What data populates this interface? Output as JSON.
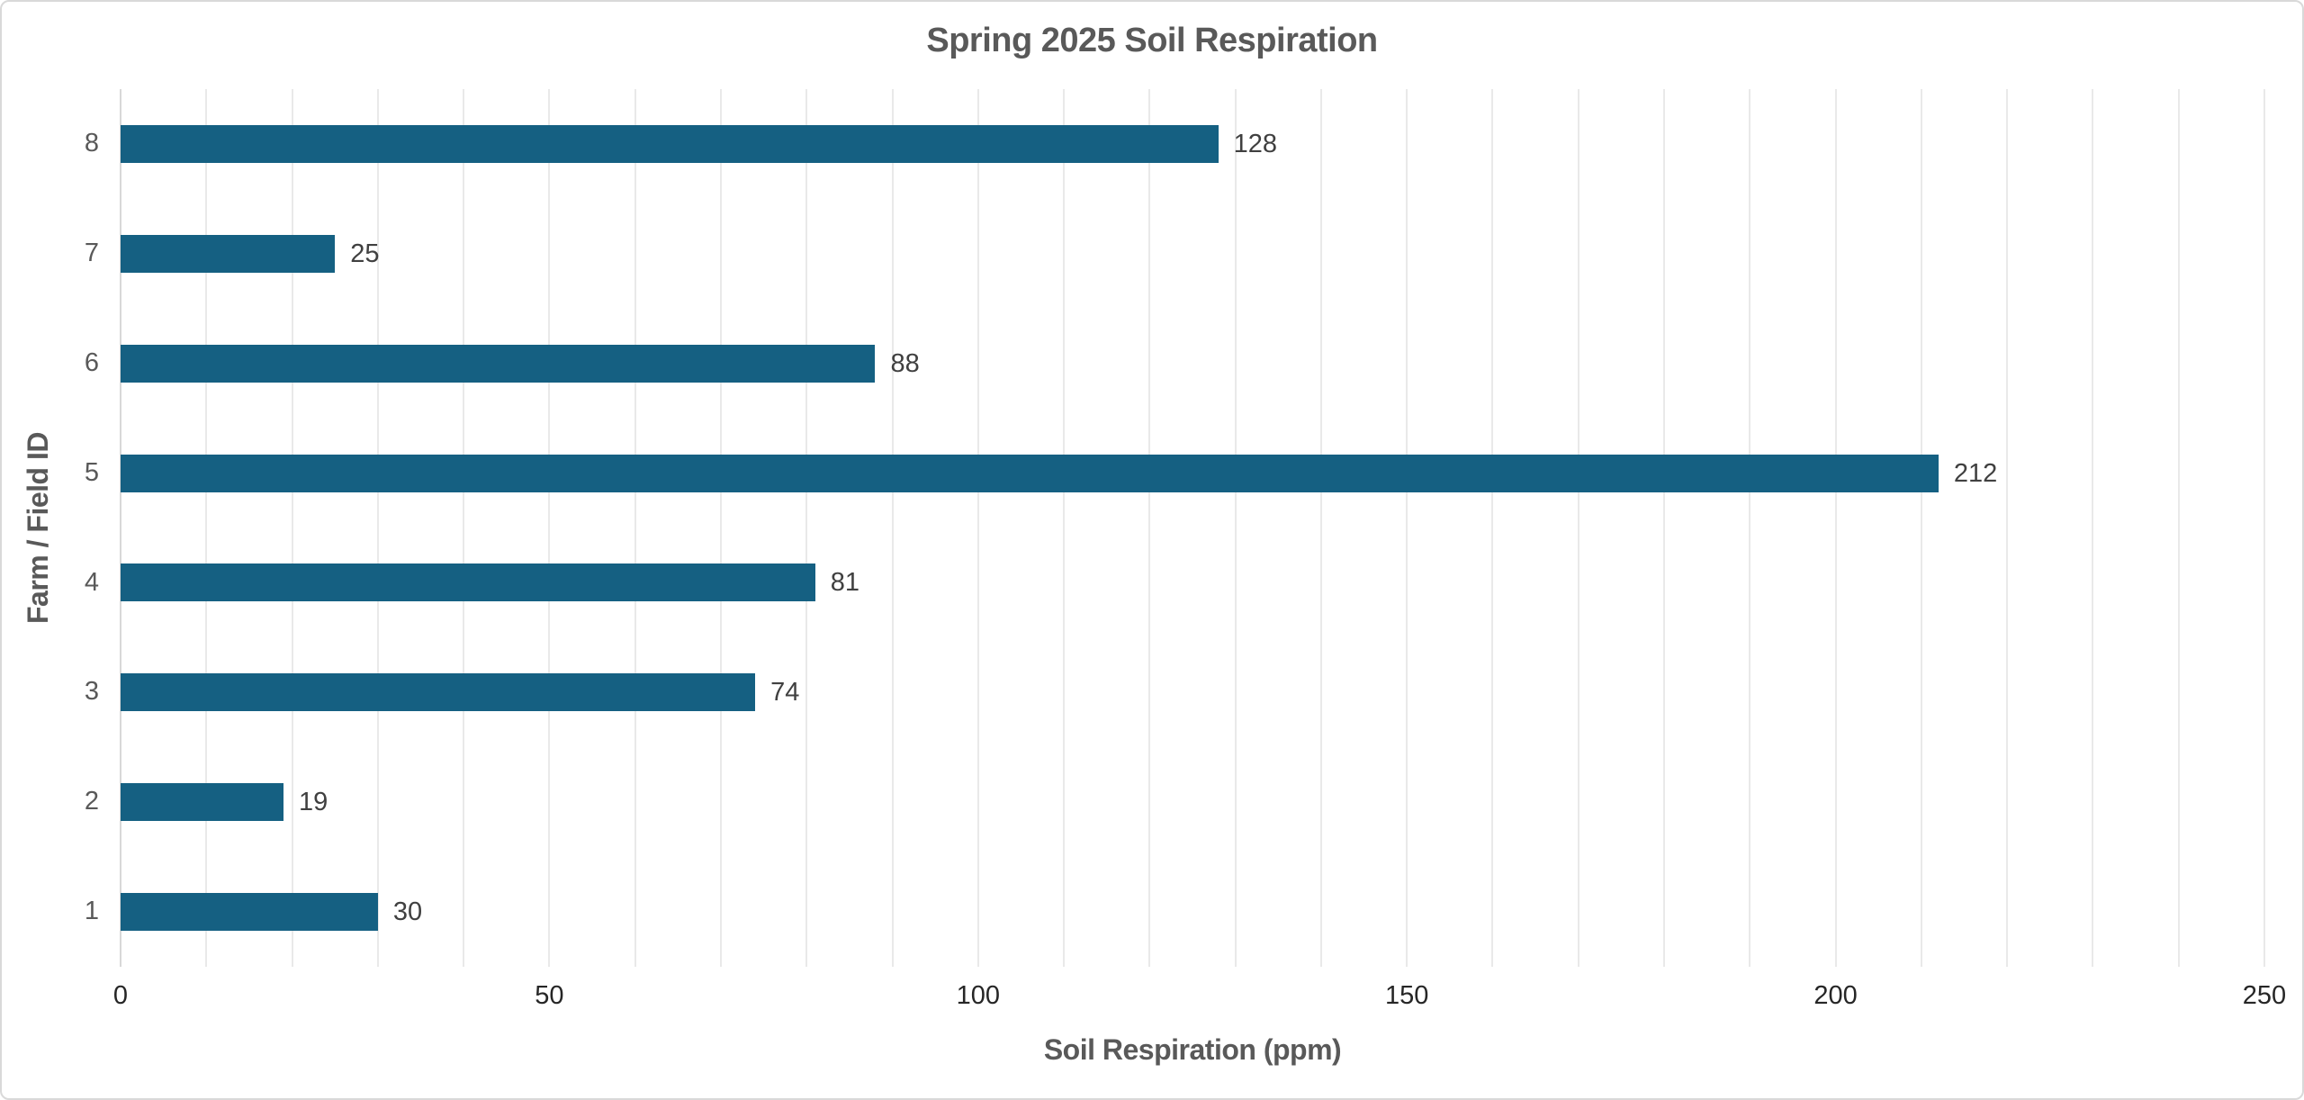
{
  "chart_data": {
    "type": "bar",
    "orientation": "horizontal",
    "title": "Spring 2025 Soil Respiration",
    "xlabel": "Soil Respiration (ppm)",
    "ylabel": "Farm / Field ID",
    "categories": [
      "1",
      "2",
      "3",
      "4",
      "5",
      "6",
      "7",
      "8"
    ],
    "values": [
      30,
      19,
      74,
      81,
      212,
      88,
      25,
      128
    ],
    "data_labels": [
      "30",
      "19",
      "74",
      "81",
      "212",
      "88",
      "25",
      "128"
    ],
    "category_order_top_to_bottom": [
      "8",
      "7",
      "6",
      "5",
      "4",
      "3",
      "2",
      "1"
    ],
    "xlim": [
      0,
      250
    ],
    "x_major_ticks": [
      "0",
      "50",
      "100",
      "150",
      "200",
      "250"
    ],
    "x_major_tick_values": [
      0,
      50,
      100,
      150,
      200,
      250
    ],
    "x_minor_gridline_step": 10,
    "grid": "vertical-minor",
    "legend": "none",
    "colors": {
      "bar": "#156082",
      "gridline": "#E9E9E9",
      "title_text": "#595959",
      "axis_title_text": "#595959",
      "y_tick_text": "#595959",
      "x_tick_text": "#262626",
      "value_label_text": "#404040",
      "chart_border": "#D9D9D9",
      "background": "#FFFFFF"
    }
  }
}
